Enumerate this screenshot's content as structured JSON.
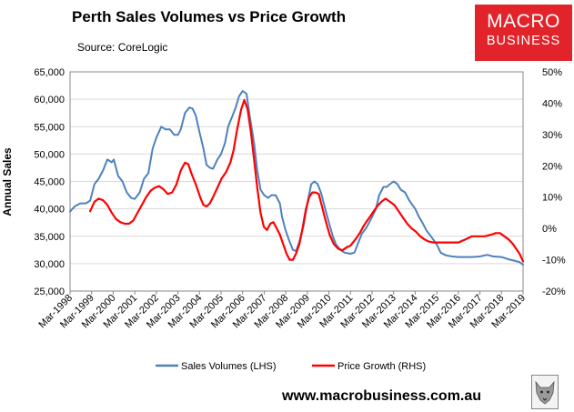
{
  "header": {
    "title": "Perth Sales Volumes vs Price Growth",
    "source": "Source: CoreLogic"
  },
  "logo": {
    "line1": "MACRO",
    "line2": "BUSINESS",
    "color": "#e2232a"
  },
  "footer": {
    "website": "www.macrobusiness.com.au"
  },
  "chart_data": {
    "type": "line",
    "title": "Perth Sales Volumes vs Price Growth",
    "ylabel": "Annual Sales",
    "y2label": "",
    "xlabel": "",
    "ylim": [
      25000,
      65000
    ],
    "y2lim": [
      -20,
      50
    ],
    "xlim": [
      1998.17,
      2019.17
    ],
    "y_ticks": [
      "25,000",
      "30,000",
      "35,000",
      "40,000",
      "45,000",
      "50,000",
      "55,000",
      "60,000",
      "65,000"
    ],
    "y2_ticks": [
      "-20%",
      "-10%",
      "0%",
      "10%",
      "20%",
      "30%",
      "40%",
      "50%"
    ],
    "x_ticks": [
      "Mar-1998",
      "Mar-1999",
      "Mar-2000",
      "Mar-2001",
      "Mar-2002",
      "Mar-2003",
      "Mar-2004",
      "Mar-2005",
      "Mar-2006",
      "Mar-2007",
      "Mar-2008",
      "Mar-2009",
      "Mar-2010",
      "Mar-2011",
      "Mar-2012",
      "Mar-2013",
      "Mar-2014",
      "Mar-2015",
      "Mar-2016",
      "Mar-2017",
      "Mar-2018",
      "Mar-2019"
    ],
    "legend_position": "bottom",
    "series": [
      {
        "name": "Sales Volumes (LHS)",
        "axis": "left",
        "color": "#4f81bd",
        "points": [
          [
            1998.17,
            39500
          ],
          [
            1998.4,
            40500
          ],
          [
            1998.65,
            41000
          ],
          [
            1998.9,
            41000
          ],
          [
            1999.1,
            41500
          ],
          [
            1999.3,
            44500
          ],
          [
            1999.5,
            45500
          ],
          [
            1999.7,
            47000
          ],
          [
            1999.9,
            49000
          ],
          [
            2000.1,
            48500
          ],
          [
            2000.2,
            49000
          ],
          [
            2000.4,
            46000
          ],
          [
            2000.6,
            45000
          ],
          [
            2000.8,
            43000
          ],
          [
            2001.0,
            42000
          ],
          [
            2001.17,
            41800
          ],
          [
            2001.4,
            43000
          ],
          [
            2001.6,
            45500
          ],
          [
            2001.8,
            46500
          ],
          [
            2002.0,
            51000
          ],
          [
            2002.17,
            53000
          ],
          [
            2002.4,
            55000
          ],
          [
            2002.6,
            54500
          ],
          [
            2002.8,
            54500
          ],
          [
            2003.0,
            53500
          ],
          [
            2003.17,
            53500
          ],
          [
            2003.3,
            54500
          ],
          [
            2003.5,
            57500
          ],
          [
            2003.7,
            58500
          ],
          [
            2003.85,
            58300
          ],
          [
            2004.0,
            57000
          ],
          [
            2004.17,
            54000
          ],
          [
            2004.35,
            51000
          ],
          [
            2004.5,
            48000
          ],
          [
            2004.65,
            47500
          ],
          [
            2004.8,
            47300
          ],
          [
            2005.0,
            49000
          ],
          [
            2005.17,
            50000
          ],
          [
            2005.35,
            52000
          ],
          [
            2005.5,
            55000
          ],
          [
            2005.7,
            57000
          ],
          [
            2005.85,
            58500
          ],
          [
            2006.0,
            60500
          ],
          [
            2006.17,
            61500
          ],
          [
            2006.35,
            61000
          ],
          [
            2006.5,
            57000
          ],
          [
            2006.7,
            52000
          ],
          [
            2006.85,
            47000
          ],
          [
            2007.0,
            43500
          ],
          [
            2007.17,
            42500
          ],
          [
            2007.35,
            42000
          ],
          [
            2007.5,
            42500
          ],
          [
            2007.7,
            42500
          ],
          [
            2007.9,
            41000
          ],
          [
            2008.0,
            38500
          ],
          [
            2008.17,
            36000
          ],
          [
            2008.35,
            34000
          ],
          [
            2008.5,
            32500
          ],
          [
            2008.65,
            32300
          ],
          [
            2008.8,
            34000
          ],
          [
            2009.0,
            37000
          ],
          [
            2009.17,
            41000
          ],
          [
            2009.35,
            44500
          ],
          [
            2009.5,
            45000
          ],
          [
            2009.65,
            44500
          ],
          [
            2009.8,
            43000
          ],
          [
            2010.0,
            40000
          ],
          [
            2010.17,
            37500
          ],
          [
            2010.35,
            35000
          ],
          [
            2010.5,
            33500
          ],
          [
            2010.7,
            32500
          ],
          [
            2010.9,
            32000
          ],
          [
            2011.17,
            31800
          ],
          [
            2011.35,
            32000
          ],
          [
            2011.5,
            33500
          ],
          [
            2011.7,
            35500
          ],
          [
            2011.9,
            36500
          ],
          [
            2012.17,
            38500
          ],
          [
            2012.35,
            40000
          ],
          [
            2012.5,
            42500
          ],
          [
            2012.7,
            44000
          ],
          [
            2012.85,
            44000
          ],
          [
            2013.0,
            44500
          ],
          [
            2013.17,
            45000
          ],
          [
            2013.35,
            44500
          ],
          [
            2013.5,
            43500
          ],
          [
            2013.7,
            43000
          ],
          [
            2013.9,
            41500
          ],
          [
            2014.17,
            40000
          ],
          [
            2014.35,
            38500
          ],
          [
            2014.5,
            37500
          ],
          [
            2014.7,
            36000
          ],
          [
            2014.9,
            35000
          ],
          [
            2015.17,
            33500
          ],
          [
            2015.35,
            32000
          ],
          [
            2015.6,
            31500
          ],
          [
            2015.9,
            31300
          ],
          [
            2016.17,
            31200
          ],
          [
            2016.5,
            31200
          ],
          [
            2016.8,
            31200
          ],
          [
            2017.17,
            31300
          ],
          [
            2017.5,
            31600
          ],
          [
            2017.8,
            31300
          ],
          [
            2018.17,
            31200
          ],
          [
            2018.5,
            30800
          ],
          [
            2018.8,
            30500
          ],
          [
            2019.0,
            30300
          ],
          [
            2019.17,
            29800
          ]
        ]
      },
      {
        "name": "Price Growth (RHS)",
        "axis": "right",
        "color": "#ff0000",
        "points": [
          [
            1999.1,
            5.5
          ],
          [
            1999.3,
            8.5
          ],
          [
            1999.5,
            9.5
          ],
          [
            1999.7,
            9.0
          ],
          [
            1999.9,
            7.5
          ],
          [
            2000.1,
            5.0
          ],
          [
            2000.3,
            3.0
          ],
          [
            2000.5,
            2.0
          ],
          [
            2000.7,
            1.5
          ],
          [
            2000.9,
            1.5
          ],
          [
            2001.1,
            2.5
          ],
          [
            2001.3,
            5.0
          ],
          [
            2001.5,
            7.5
          ],
          [
            2001.7,
            10.0
          ],
          [
            2001.9,
            12.0
          ],
          [
            2002.1,
            13.0
          ],
          [
            2002.3,
            13.5
          ],
          [
            2002.5,
            12.5
          ],
          [
            2002.7,
            11.0
          ],
          [
            2002.9,
            11.5
          ],
          [
            2003.1,
            14.0
          ],
          [
            2003.3,
            18.5
          ],
          [
            2003.5,
            21.0
          ],
          [
            2003.65,
            20.5
          ],
          [
            2003.8,
            17.5
          ],
          [
            2004.0,
            14.0
          ],
          [
            2004.2,
            10.0
          ],
          [
            2004.35,
            7.5
          ],
          [
            2004.5,
            7.0
          ],
          [
            2004.65,
            8.0
          ],
          [
            2004.8,
            10.0
          ],
          [
            2005.0,
            13.0
          ],
          [
            2005.2,
            16.0
          ],
          [
            2005.4,
            18.0
          ],
          [
            2005.6,
            21.0
          ],
          [
            2005.75,
            25.0
          ],
          [
            2005.9,
            31.0
          ],
          [
            2006.1,
            38.0
          ],
          [
            2006.25,
            41.0
          ],
          [
            2006.4,
            38.0
          ],
          [
            2006.55,
            31.0
          ],
          [
            2006.7,
            22.0
          ],
          [
            2006.85,
            13.0
          ],
          [
            2007.0,
            5.0
          ],
          [
            2007.15,
            0.5
          ],
          [
            2007.3,
            -0.5
          ],
          [
            2007.45,
            1.5
          ],
          [
            2007.6,
            2.0
          ],
          [
            2007.75,
            0.0
          ],
          [
            2007.9,
            -2.0
          ],
          [
            2008.05,
            -5.0
          ],
          [
            2008.2,
            -8.0
          ],
          [
            2008.35,
            -10.0
          ],
          [
            2008.5,
            -10.0
          ],
          [
            2008.65,
            -8.0
          ],
          [
            2008.8,
            -5.0
          ],
          [
            2008.95,
            0.0
          ],
          [
            2009.1,
            6.0
          ],
          [
            2009.25,
            10.0
          ],
          [
            2009.4,
            11.5
          ],
          [
            2009.55,
            11.5
          ],
          [
            2009.7,
            11.0
          ],
          [
            2009.85,
            7.0
          ],
          [
            2010.0,
            3.0
          ],
          [
            2010.2,
            -2.0
          ],
          [
            2010.4,
            -5.0
          ],
          [
            2010.6,
            -6.5
          ],
          [
            2010.8,
            -7.0
          ],
          [
            2011.0,
            -6.0
          ],
          [
            2011.17,
            -5.5
          ],
          [
            2011.4,
            -3.5
          ],
          [
            2011.6,
            -1.5
          ],
          [
            2011.8,
            1.0
          ],
          [
            2012.0,
            3.0
          ],
          [
            2012.2,
            5.0
          ],
          [
            2012.4,
            7.0
          ],
          [
            2012.6,
            8.5
          ],
          [
            2012.8,
            9.5
          ],
          [
            2013.0,
            8.5
          ],
          [
            2013.2,
            7.5
          ],
          [
            2013.4,
            5.5
          ],
          [
            2013.6,
            3.5
          ],
          [
            2013.8,
            1.5
          ],
          [
            2014.0,
            0.0
          ],
          [
            2014.2,
            -1.0
          ],
          [
            2014.4,
            -2.5
          ],
          [
            2014.6,
            -3.5
          ],
          [
            2014.8,
            -4.2
          ],
          [
            2015.0,
            -4.5
          ],
          [
            2015.3,
            -4.5
          ],
          [
            2015.6,
            -4.5
          ],
          [
            2015.9,
            -4.5
          ],
          [
            2016.17,
            -4.5
          ],
          [
            2016.5,
            -3.5
          ],
          [
            2016.8,
            -2.5
          ],
          [
            2017.1,
            -2.5
          ],
          [
            2017.4,
            -2.5
          ],
          [
            2017.7,
            -2.0
          ],
          [
            2017.9,
            -1.5
          ],
          [
            2018.1,
            -1.5
          ],
          [
            2018.3,
            -2.5
          ],
          [
            2018.5,
            -3.5
          ],
          [
            2018.7,
            -5.0
          ],
          [
            2018.85,
            -6.5
          ],
          [
            2019.0,
            -8.0
          ],
          [
            2019.17,
            -10.5
          ]
        ]
      }
    ]
  }
}
